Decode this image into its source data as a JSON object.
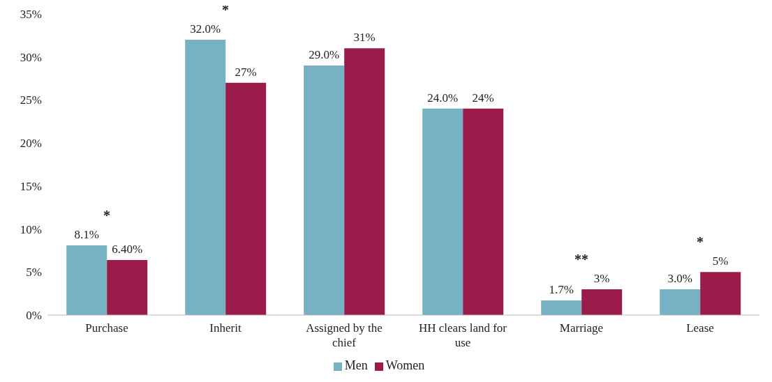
{
  "chart_data": {
    "type": "bar",
    "categories": [
      "Purchase",
      "Inherit",
      "Assigned by the chief",
      "HH clears land for use",
      "Marriage",
      "Lease"
    ],
    "series": [
      {
        "name": "Men",
        "color": "#76b2c3",
        "values": [
          8.1,
          32.0,
          29.0,
          24.0,
          1.7,
          3.0
        ],
        "value_labels": [
          "8.1%",
          "32.0%",
          "29.0%",
          "24.0%",
          "1.7%",
          "3.0%"
        ]
      },
      {
        "name": "Women",
        "color": "#9b1b4b",
        "values": [
          6.4,
          27,
          31,
          24,
          3,
          5
        ],
        "value_labels": [
          "6.40%",
          "27%",
          "31%",
          "24%",
          "3%",
          "5%"
        ]
      }
    ],
    "ylim": [
      0,
      35
    ],
    "yticks": [
      {
        "value": 0,
        "label": "0%"
      },
      {
        "value": 5,
        "label": "5%"
      },
      {
        "value": 10,
        "label": "10%"
      },
      {
        "value": 15,
        "label": "15%"
      },
      {
        "value": 20,
        "label": "20%"
      },
      {
        "value": 25,
        "label": "25%"
      },
      {
        "value": 30,
        "label": "30%"
      },
      {
        "value": 35,
        "label": "35%"
      }
    ],
    "annotations": [
      {
        "text": "*",
        "x": "Purchase",
        "y": 8.1
      },
      {
        "text": "*",
        "x": "Inherit",
        "y": 32.0
      },
      {
        "text": "**",
        "x": "Marriage",
        "y": 3
      },
      {
        "text": "*",
        "x": "Lease",
        "y": 5
      }
    ],
    "grid": false,
    "legend": "bottom"
  }
}
